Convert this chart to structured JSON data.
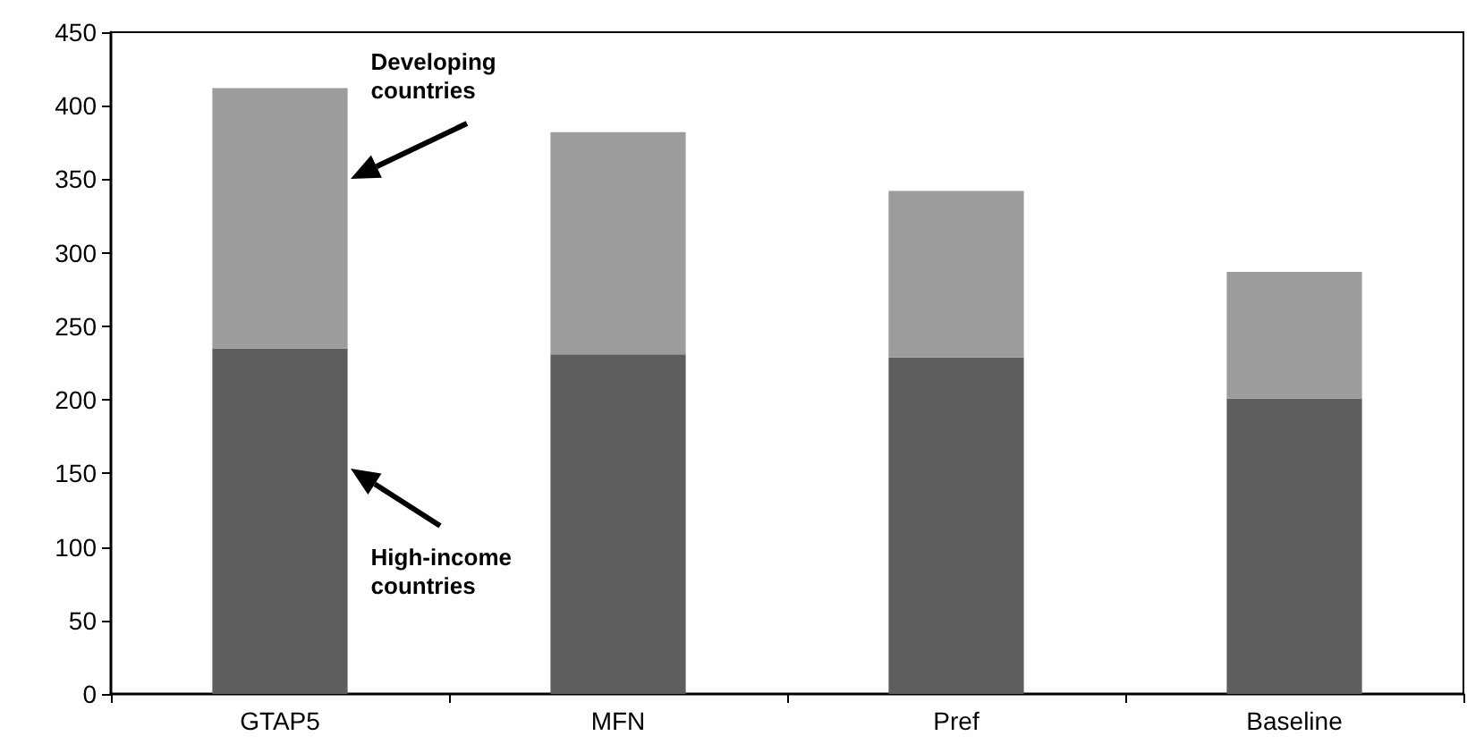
{
  "chart_data": {
    "type": "bar",
    "stacked": true,
    "categories": [
      "GTAP5",
      "MFN",
      "Pref",
      "Baseline"
    ],
    "series": [
      {
        "color": "#5e5e5e",
        "values": [
          235,
          231,
          229,
          201
        ]
      },
      {
        "color": "#9c9c9c",
        "values": [
          177,
          151,
          113,
          86
        ]
      }
    ],
    "ylim": [
      0,
      450
    ],
    "yticks": [
      0,
      50,
      100,
      150,
      200,
      250,
      300,
      350,
      400,
      450
    ],
    "grid": false,
    "annotations": [
      "Developing countries",
      "High-income countries"
    ]
  }
}
